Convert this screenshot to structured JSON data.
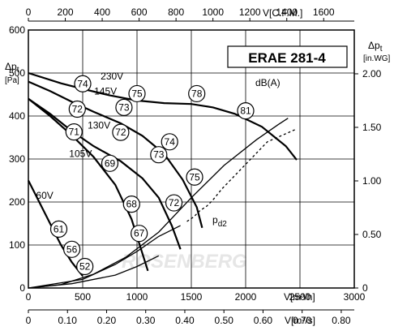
{
  "chart_data": {
    "type": "line",
    "title": "ERAE 281-4",
    "y_axis_left": {
      "label_top": "Δp",
      "label_sub": "t",
      "unit": "[Pa]",
      "ylim": [
        0,
        600
      ],
      "ticks": [
        "0",
        "100",
        "200",
        "300",
        "400",
        "500",
        "600"
      ]
    },
    "y_axis_right": {
      "label_top": "Δp",
      "label_sub": "t",
      "unit": "[in.WG]",
      "ticks": [
        "0",
        "0.50",
        "1.00",
        "1.50",
        "2.00"
      ]
    },
    "x_axis_m3h": {
      "label": "V[m³/h]",
      "xlim": [
        0,
        3000
      ],
      "ticks": [
        "0",
        "500",
        "1000",
        "1500",
        "2000",
        "2500",
        "3000"
      ]
    },
    "x_axis_m3s": {
      "label": "V[m³/s]",
      "ticks": [
        "0",
        "0.10",
        "0.20",
        "0.30",
        "0.40",
        "0.50",
        "0.60",
        "0.70",
        "0.80"
      ]
    },
    "x_axis_cfm": {
      "label": "V[C.F.M.]",
      "ticks": [
        "0",
        "200",
        "400",
        "600",
        "800",
        "1000",
        "1200",
        "1400",
        "1600"
      ]
    },
    "grid": true,
    "dba_label": "dB(A)",
    "pd_label": "p",
    "pd_sub": "d2",
    "watermark": "ROSENBERG",
    "series": [
      {
        "name": "230V",
        "x": [
          0,
          300,
          500,
          750,
          1000,
          1250,
          1500,
          1700,
          1900,
          2150,
          2370,
          2470
        ],
        "y": [
          500,
          476,
          463,
          448,
          436,
          430,
          428,
          420,
          405,
          375,
          330,
          298
        ]
      },
      {
        "name": "145V",
        "x": [
          0,
          200,
          400,
          600,
          850,
          1050,
          1250,
          1420,
          1550,
          1600
        ],
        "y": [
          480,
          458,
          433,
          410,
          383,
          354,
          312,
          252,
          188,
          140
        ]
      },
      {
        "name": "130V",
        "x": [
          0,
          200,
          400,
          600,
          850,
          1050,
          1200,
          1320,
          1400
        ],
        "y": [
          440,
          405,
          365,
          330,
          295,
          255,
          210,
          145,
          90
        ]
      },
      {
        "name": "105V",
        "x": [
          0,
          200,
          400,
          600,
          800,
          950,
          1050,
          1100
        ],
        "y": [
          440,
          400,
          355,
          305,
          240,
          160,
          80,
          40
        ]
      },
      {
        "name": "60V",
        "x": [
          0,
          100,
          200,
          300,
          400,
          500
        ],
        "y": [
          250,
          200,
          150,
          100,
          60,
          28
        ]
      }
    ],
    "system_curves": [
      {
        "x": [
          0,
          300,
          600,
          900,
          1200,
          1500,
          1800,
          2100,
          2300,
          2390
        ],
        "y": [
          0,
          8,
          32,
          72,
          130,
          210,
          285,
          345,
          380,
          395
        ]
      },
      {
        "x": [
          0,
          500,
          800,
          1000,
          1200,
          1400
        ],
        "y": [
          0,
          20,
          55,
          85,
          120,
          145
        ]
      },
      {
        "x": [
          0,
          400,
          800,
          1000,
          1200
        ],
        "y": [
          0,
          10,
          30,
          50,
          75
        ]
      }
    ],
    "dashed_curve": {
      "x": [
        1460,
        1520,
        1580,
        1640,
        1700,
        1780,
        2200,
        2470
      ],
      "y": [
        155,
        165,
        180,
        190,
        205,
        230,
        340,
        370
      ]
    },
    "dashed_right": {
      "x": [
        2370,
        2470
      ],
      "y": [
        330,
        298
      ]
    },
    "markers": [
      {
        "label": "74",
        "x": 500,
        "y": 475
      },
      {
        "label": "75",
        "x": 1000,
        "y": 452
      },
      {
        "label": "78",
        "x": 1550,
        "y": 452
      },
      {
        "label": "81",
        "x": 2000,
        "y": 412
      },
      {
        "label": "72",
        "x": 450,
        "y": 416
      },
      {
        "label": "73",
        "x": 880,
        "y": 420
      },
      {
        "label": "71",
        "x": 420,
        "y": 363
      },
      {
        "label": "72",
        "x": 850,
        "y": 362
      },
      {
        "label": "74",
        "x": 1300,
        "y": 340
      },
      {
        "label": "69",
        "x": 750,
        "y": 290
      },
      {
        "label": "73",
        "x": 1200,
        "y": 310
      },
      {
        "label": "75",
        "x": 1530,
        "y": 258
      },
      {
        "label": "68",
        "x": 950,
        "y": 195
      },
      {
        "label": "72",
        "x": 1340,
        "y": 198
      },
      {
        "label": "67",
        "x": 1020,
        "y": 127
      },
      {
        "label": "61",
        "x": 280,
        "y": 137
      },
      {
        "label": "56",
        "x": 400,
        "y": 90
      },
      {
        "label": "52",
        "x": 520,
        "y": 50
      }
    ],
    "voltage_labels": [
      {
        "text": "230V",
        "x": 770,
        "y": 485
      },
      {
        "text": "145V",
        "x": 710,
        "y": 450
      },
      {
        "text": "130V",
        "x": 650,
        "y": 371
      },
      {
        "text": "105V",
        "x": 480,
        "y": 305
      },
      {
        "text": "60V",
        "x": 150,
        "y": 208
      }
    ]
  }
}
